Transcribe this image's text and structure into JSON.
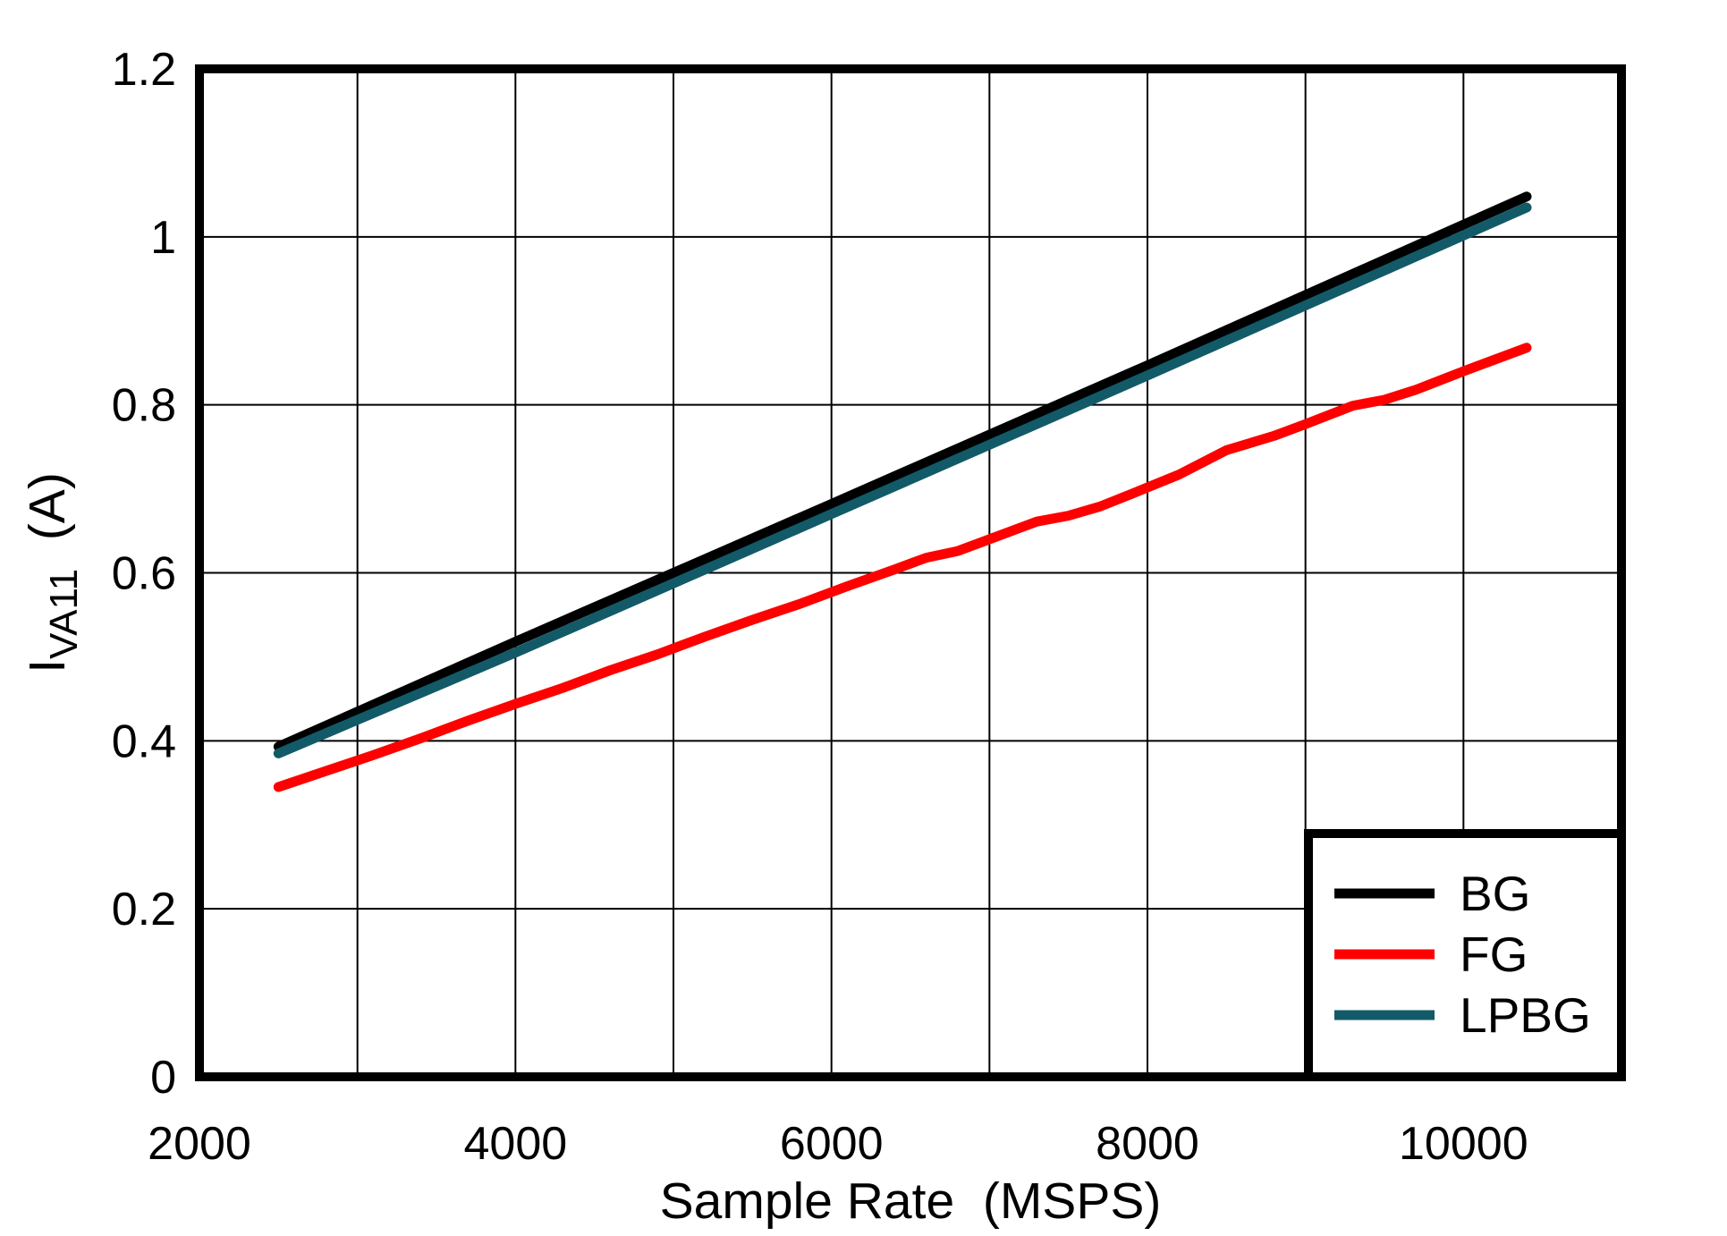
{
  "chart_data": {
    "type": "line",
    "title": "",
    "xlabel": "Sample Rate  (MSPS)",
    "ylabel": {
      "main": "I",
      "sub": "VA11",
      "unit": "  (A)"
    },
    "x_range": [
      2000,
      11000
    ],
    "y_range": [
      0,
      1.2
    ],
    "x_gridline_step": 1000,
    "y_gridline_step": 0.2,
    "grid": true,
    "x_ticks": [
      {
        "value": 2000,
        "label": "2000"
      },
      {
        "value": 4000,
        "label": "4000"
      },
      {
        "value": 6000,
        "label": "6000"
      },
      {
        "value": 8000,
        "label": "8000"
      },
      {
        "value": 10000,
        "label": "10000"
      }
    ],
    "y_ticks": [
      {
        "value": 0,
        "label": "0"
      },
      {
        "value": 0.2,
        "label": "0.2"
      },
      {
        "value": 0.4,
        "label": "0.4"
      },
      {
        "value": 0.6,
        "label": "0.6"
      },
      {
        "value": 0.8,
        "label": "0.8"
      },
      {
        "value": 1,
        "label": "1"
      },
      {
        "value": 1.2,
        "label": "1.2"
      }
    ],
    "legend_position": "bottom-right",
    "series": [
      {
        "name": "BG",
        "color": "#000000",
        "x": [
          2500,
          4000,
          6000,
          8000,
          10400
        ],
        "values": [
          0.393,
          0.518,
          0.682,
          0.847,
          1.048
        ]
      },
      {
        "name": "FG",
        "color": "#FE0000",
        "x": [
          2500,
          2800,
          3100,
          3400,
          3700,
          4000,
          4300,
          4600,
          4900,
          5200,
          5500,
          5800,
          6100,
          6400,
          6600,
          6800,
          7000,
          7300,
          7500,
          7700,
          7900,
          8200,
          8500,
          8800,
          9000,
          9300,
          9500,
          9700,
          10000,
          10400
        ],
        "values": [
          0.345,
          0.364,
          0.383,
          0.403,
          0.424,
          0.444,
          0.463,
          0.484,
          0.503,
          0.524,
          0.544,
          0.563,
          0.584,
          0.604,
          0.618,
          0.626,
          0.64,
          0.661,
          0.668,
          0.679,
          0.694,
          0.717,
          0.746,
          0.763,
          0.777,
          0.799,
          0.806,
          0.818,
          0.84,
          0.868
        ]
      },
      {
        "name": "LPBG",
        "color": "#125A68",
        "x": [
          2500,
          4000,
          6000,
          8000,
          10400
        ],
        "values": [
          0.385,
          0.505,
          0.67,
          0.835,
          1.035
        ]
      }
    ],
    "legend": [
      "BG",
      "FG",
      "LPBG"
    ]
  },
  "colors": {
    "background": "#FFFFFF",
    "grid": "#000000",
    "border": "#000000",
    "text": "#000000"
  }
}
